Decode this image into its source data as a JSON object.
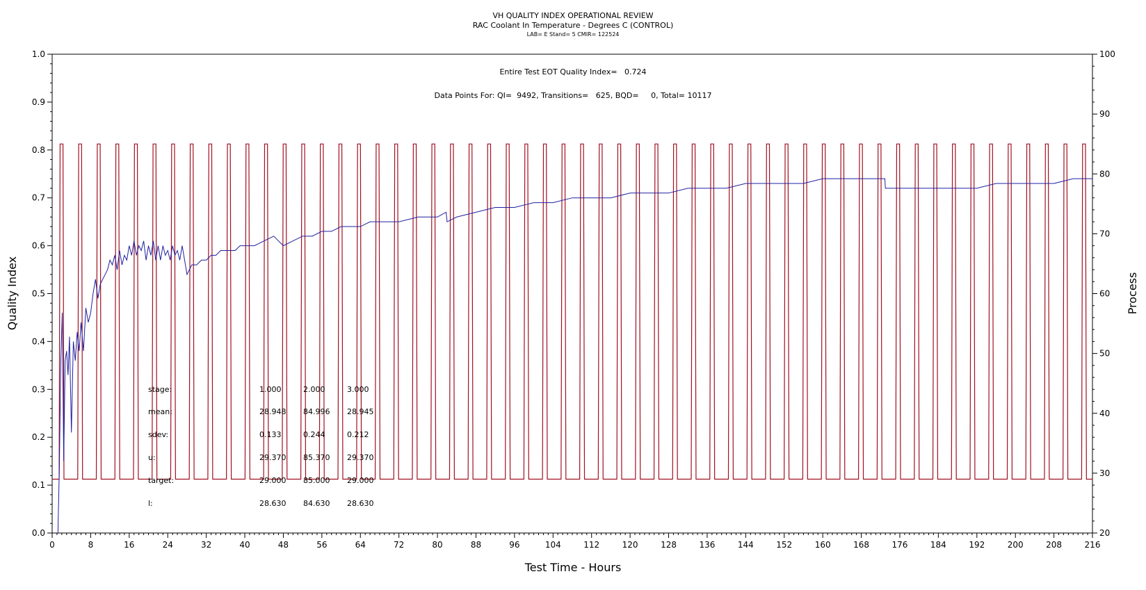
{
  "chart_data": {
    "type": "line",
    "title": "VH QUALITY INDEX OPERATIONAL REVIEW",
    "subtitle": "RAC Coolant In Temperature - Degrees C (CONTROL)",
    "subsubtitle": "LAB= E Stand= 5 CMIR= 122524",
    "xlabel": "Test Time - Hours",
    "ylabel_left": "Quality Index",
    "ylabel_right": "Process",
    "xlim": [
      0,
      216
    ],
    "ylim_left": [
      0,
      1.0
    ],
    "ylim_right": [
      20,
      100
    ],
    "x_ticks": [
      0,
      8,
      16,
      24,
      32,
      40,
      48,
      56,
      64,
      72,
      80,
      88,
      96,
      104,
      112,
      120,
      128,
      136,
      144,
      152,
      160,
      168,
      176,
      184,
      192,
      200,
      208,
      216
    ],
    "y_ticks_left": [
      "0.0",
      "0.1",
      "0.2",
      "0.3",
      "0.4",
      "0.5",
      "0.6",
      "0.7",
      "0.8",
      "0.9",
      "1.0"
    ],
    "y_ticks_right": [
      "20",
      "30",
      "40",
      "50",
      "60",
      "70",
      "80",
      "90",
      "100"
    ],
    "annotation_eot": "Entire Test EOT Quality Index=   0.724",
    "annotation_points": "Data Points For: QI=  9492, Transitions=   625, BQD=     0, Total= 10117",
    "stats_table": {
      "rows": [
        {
          "label": "stage:",
          "values": [
            "1.000",
            "2.000",
            "3.000"
          ]
        },
        {
          "label": "mean:",
          "values": [
            "28.948",
            "84.996",
            "28.945"
          ]
        },
        {
          "label": "sdev:",
          "values": [
            "0.133",
            "0.244",
            "0.212"
          ]
        },
        {
          "label": "u:",
          "values": [
            "29.370",
            "85.370",
            "29.370"
          ]
        },
        {
          "label": "target:",
          "values": [
            "29.000",
            "85.000",
            "29.000"
          ]
        },
        {
          "label": "l:",
          "values": [
            "28.630",
            "84.630",
            "28.630"
          ]
        }
      ]
    },
    "series": [
      {
        "axis": "left",
        "color": "#1f1fa0",
        "x": [
          1.2,
          1.5,
          1.8,
          2.1,
          2.4,
          2.7,
          3.0,
          3.3,
          3.6,
          4.0,
          4.4,
          4.8,
          5.2,
          5.6,
          6.0,
          6.5,
          7.0,
          7.5,
          8.0,
          8.5,
          9.0,
          9.5,
          10.0,
          10.5,
          11.0,
          11.5,
          12.0,
          12.5,
          13.0,
          13.5,
          14.0,
          14.5,
          15.0,
          15.5,
          16.0,
          16.5,
          17.0,
          17.5,
          18.0,
          18.5,
          19.0,
          19.5,
          20.0,
          20.5,
          21.0,
          21.5,
          22.0,
          22.5,
          23.0,
          23.5,
          24.0,
          24.5,
          25.0,
          25.5,
          26.0,
          26.5,
          27.0,
          27.5,
          28.0,
          29.0,
          30.0,
          31.0,
          32.0,
          33.0,
          34.0,
          35.0,
          36.0,
          37.0,
          38.0,
          39.0,
          40.0,
          42.0,
          44.0,
          46.0,
          48.0,
          50.0,
          52.0,
          54.0,
          56.0,
          58.0,
          60.0,
          62.0,
          64.0,
          66.0,
          68.0,
          70.0,
          72.0,
          76.0,
          80.0,
          81.8,
          82.0,
          84.0,
          88.0,
          92.0,
          96.0,
          100.0,
          104.0,
          108.0,
          112.0,
          116.0,
          120.0,
          124.0,
          128.0,
          132.0,
          136.0,
          140.0,
          144.0,
          148.0,
          152.0,
          156.0,
          160.0,
          164.0,
          168.0,
          172.9,
          173.0,
          176.0,
          178.0,
          179.0,
          180.0,
          184.0,
          188.0,
          192.0,
          196.0,
          200.0,
          204.0,
          208.0,
          212.0,
          216.0
        ],
        "values": [
          0.0,
          0.14,
          0.36,
          0.46,
          0.15,
          0.36,
          0.38,
          0.33,
          0.41,
          0.21,
          0.4,
          0.36,
          0.42,
          0.38,
          0.44,
          0.38,
          0.47,
          0.44,
          0.46,
          0.5,
          0.53,
          0.49,
          0.52,
          0.53,
          0.54,
          0.55,
          0.57,
          0.56,
          0.58,
          0.55,
          0.59,
          0.56,
          0.58,
          0.57,
          0.6,
          0.58,
          0.61,
          0.58,
          0.6,
          0.59,
          0.61,
          0.57,
          0.6,
          0.58,
          0.61,
          0.57,
          0.6,
          0.57,
          0.6,
          0.58,
          0.59,
          0.57,
          0.6,
          0.58,
          0.59,
          0.57,
          0.6,
          0.57,
          0.54,
          0.56,
          0.56,
          0.57,
          0.57,
          0.58,
          0.58,
          0.59,
          0.59,
          0.59,
          0.59,
          0.6,
          0.6,
          0.6,
          0.61,
          0.62,
          0.6,
          0.61,
          0.62,
          0.62,
          0.63,
          0.63,
          0.64,
          0.64,
          0.64,
          0.65,
          0.65,
          0.65,
          0.65,
          0.66,
          0.66,
          0.67,
          0.65,
          0.66,
          0.67,
          0.68,
          0.68,
          0.69,
          0.69,
          0.7,
          0.7,
          0.7,
          0.71,
          0.71,
          0.71,
          0.72,
          0.72,
          0.72,
          0.73,
          0.73,
          0.73,
          0.73,
          0.74,
          0.74,
          0.74,
          0.74,
          0.72,
          0.72,
          0.72,
          0.72,
          0.72,
          0.72,
          0.72,
          0.72,
          0.73,
          0.73,
          0.73,
          0.73,
          0.74,
          0.74
        ]
      },
      {
        "axis": "right",
        "color": "#a01020",
        "cycle_start_hours": 0.2,
        "cycle_period_hours": 3.86,
        "low_value": 29,
        "high_value": 85,
        "high_start_offset_hours": 1.45,
        "high_end_offset_hours": 2.25,
        "ramp_hours": 0.2,
        "end_hours": 216
      }
    ]
  }
}
